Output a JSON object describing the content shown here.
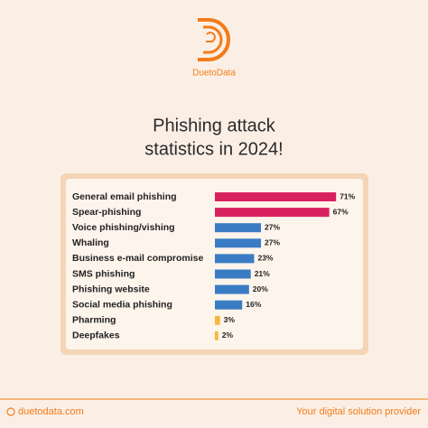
{
  "brand": "DuetoData",
  "chart_data": {
    "type": "bar",
    "orientation": "horizontal",
    "title": [
      "Phishing attack",
      "statistics in 2024!"
    ],
    "categories": [
      "General email phishing",
      "Spear-phishing",
      "Voice phishing/vishing",
      "Whaling",
      "Business e-mail compromise",
      "SMS phishing",
      "Phishing website",
      "Social media phishing",
      "Pharming",
      "Deepfakes"
    ],
    "values": [
      71,
      67,
      27,
      27,
      23,
      21,
      20,
      16,
      3,
      2
    ],
    "value_labels": [
      "71%",
      "67%",
      "27%",
      "27%",
      "23%",
      "21%",
      "20%",
      "16%",
      "3%",
      "2%"
    ],
    "colors": [
      "#d8215f",
      "#d8215f",
      "#3a7cc3",
      "#3a7cc3",
      "#3a7cc3",
      "#3a7cc3",
      "#3a7cc3",
      "#3a7cc3",
      "#f5b83f",
      "#f5b83f"
    ]
  },
  "footer": {
    "website": "duetodata.com",
    "tagline": "Your digital solution provider"
  }
}
